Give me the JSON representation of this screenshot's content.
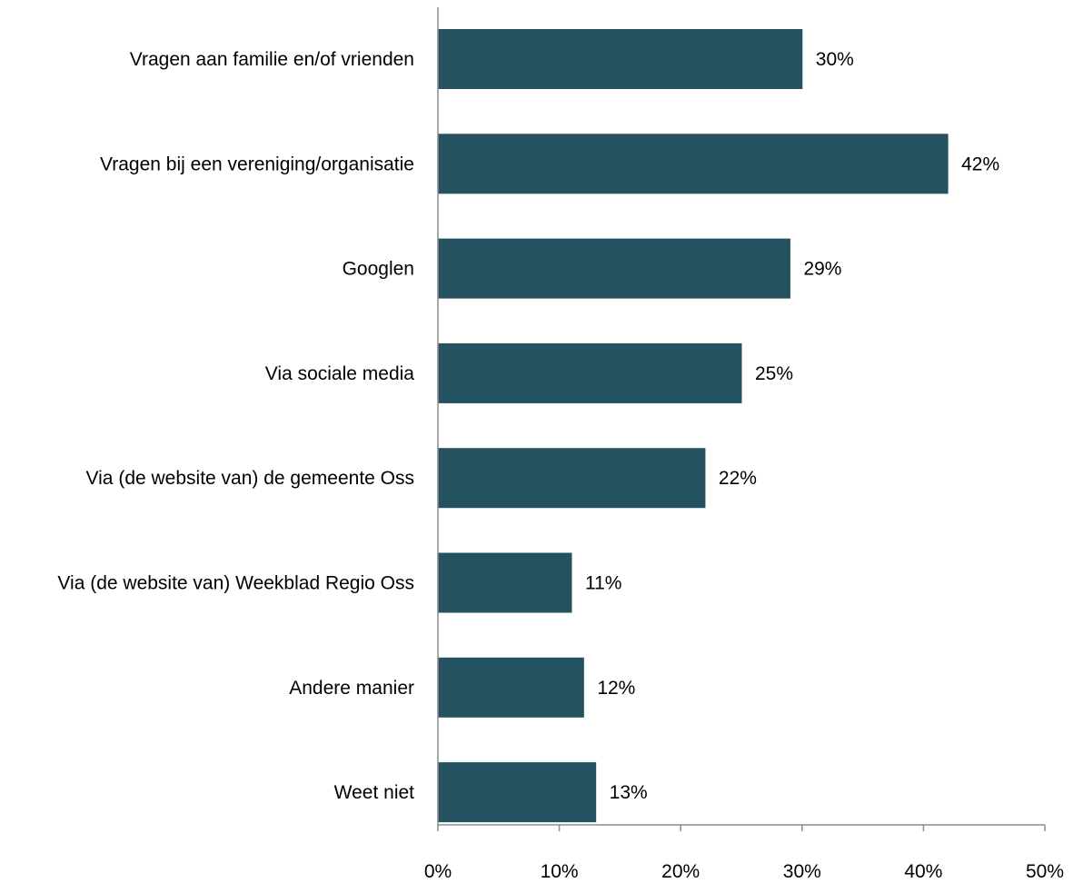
{
  "chart_data": {
    "type": "bar",
    "orientation": "horizontal",
    "title": "",
    "xlabel": "",
    "ylabel": "",
    "categories": [
      "Vragen aan familie en/of vrienden",
      "Vragen bij een vereniging/organisatie",
      "Googlen",
      "Via sociale media",
      "Via (de website van) de gemeente Oss",
      "Via (de website van) Weekblad Regio Oss",
      "Andere manier",
      "Weet niet"
    ],
    "values": [
      30,
      42,
      29,
      25,
      22,
      11,
      12,
      13
    ],
    "value_labels": [
      "30%",
      "42%",
      "29%",
      "25%",
      "22%",
      "11%",
      "12%",
      "13%"
    ],
    "xlim": [
      0,
      50
    ],
    "x_ticks": [
      0,
      10,
      20,
      30,
      40,
      50
    ],
    "x_tick_labels": [
      "0%",
      "10%",
      "20%",
      "30%",
      "40%",
      "50%"
    ],
    "grid": false,
    "legend": "none",
    "colors": {
      "bar": "#255260",
      "axis": "#8c8c8c",
      "text": "#000000"
    }
  }
}
